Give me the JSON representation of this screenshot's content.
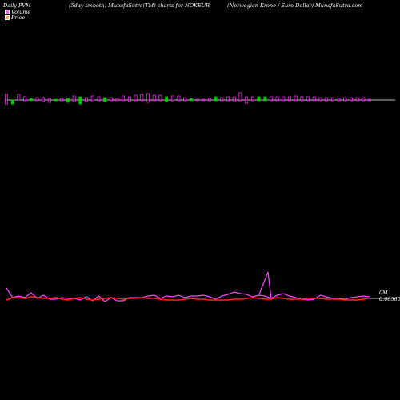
{
  "header": {
    "left": "Daily PVM",
    "center": "(5day smooth) MunafaSutra(TM) charts for NOKEUR",
    "right": "(Norwegian  Krone  /  Euro  Dollar) MunafaSutra.com"
  },
  "legend": [
    {
      "label": "Volume",
      "color": "#ff66ff"
    },
    {
      "label": "Price",
      "color": "#ffaa66"
    }
  ],
  "chart_data": {
    "type": "line",
    "title": "(5day smooth) MunafaSutra(TM) charts for NOKEUR",
    "price_labels": [
      "0M",
      "0.08580"
    ],
    "volume_up": [
      true,
      false,
      true,
      true,
      false,
      true,
      true,
      true,
      false,
      true,
      false,
      true,
      false,
      true,
      true,
      true,
      false,
      true,
      true,
      true,
      true,
      true,
      true,
      true,
      true,
      true,
      false,
      true,
      true,
      true,
      false,
      true,
      true,
      true,
      false,
      true,
      true,
      true,
      true,
      true,
      true,
      false,
      false,
      true,
      true,
      true,
      true,
      true,
      true,
      true,
      true,
      true,
      true,
      true,
      true,
      true,
      true,
      true,
      true,
      true
    ],
    "volume_top": [
      7,
      0,
      7,
      4,
      2,
      3,
      3,
      2,
      1,
      2,
      2,
      5,
      4,
      3,
      5,
      4,
      3,
      3,
      2,
      5,
      4,
      6,
      7,
      8,
      6,
      6,
      4,
      5,
      5,
      3,
      2,
      1,
      1,
      2,
      4,
      3,
      4,
      4,
      9,
      4,
      4,
      4,
      4,
      4,
      4,
      4,
      4,
      5,
      4,
      4,
      4,
      3,
      3,
      3,
      2,
      3,
      3,
      3,
      3,
      1
    ],
    "volume_bottom": [
      5,
      5,
      0,
      1,
      1,
      1,
      2,
      3,
      1,
      1,
      3,
      2,
      5,
      2,
      2,
      1,
      2,
      1,
      1,
      1,
      2,
      1,
      1,
      3,
      1,
      1,
      2,
      1,
      1,
      1,
      1,
      1,
      1,
      1,
      1,
      1,
      1,
      2,
      1,
      4,
      1,
      1,
      1,
      1,
      1,
      1,
      1,
      1,
      1,
      1,
      1,
      1,
      1,
      1,
      1,
      1,
      1,
      1,
      1,
      1
    ],
    "series": [
      {
        "values": [
          25,
          13,
          15,
          13,
          19,
          12,
          16,
          11,
          11,
          13,
          12,
          12,
          10,
          14,
          9,
          15,
          8,
          13,
          9,
          9,
          13,
          13,
          13,
          15,
          16,
          12,
          15,
          14,
          16,
          13,
          15,
          15,
          16,
          14,
          11,
          15,
          17,
          20,
          18,
          17,
          14,
          16,
          15,
          12,
          16,
          18,
          15,
          13,
          11,
          10,
          11,
          16,
          14,
          12,
          12,
          11,
          13,
          14,
          15,
          14
        ]
      },
      {
        "values": [
          10,
          13,
          13,
          12,
          14,
          13,
          12,
          12,
          13,
          11,
          10,
          12,
          13,
          11,
          10,
          11,
          12,
          13,
          12,
          11,
          12,
          12,
          13,
          12,
          12,
          11,
          10,
          10,
          10,
          11,
          12,
          11,
          11,
          10,
          10,
          10,
          10,
          11,
          11,
          12,
          13,
          12,
          11,
          11,
          13,
          12,
          11,
          11,
          11,
          12,
          12,
          12,
          11,
          11,
          11,
          10,
          10,
          10,
          11,
          12
        ]
      }
    ]
  }
}
